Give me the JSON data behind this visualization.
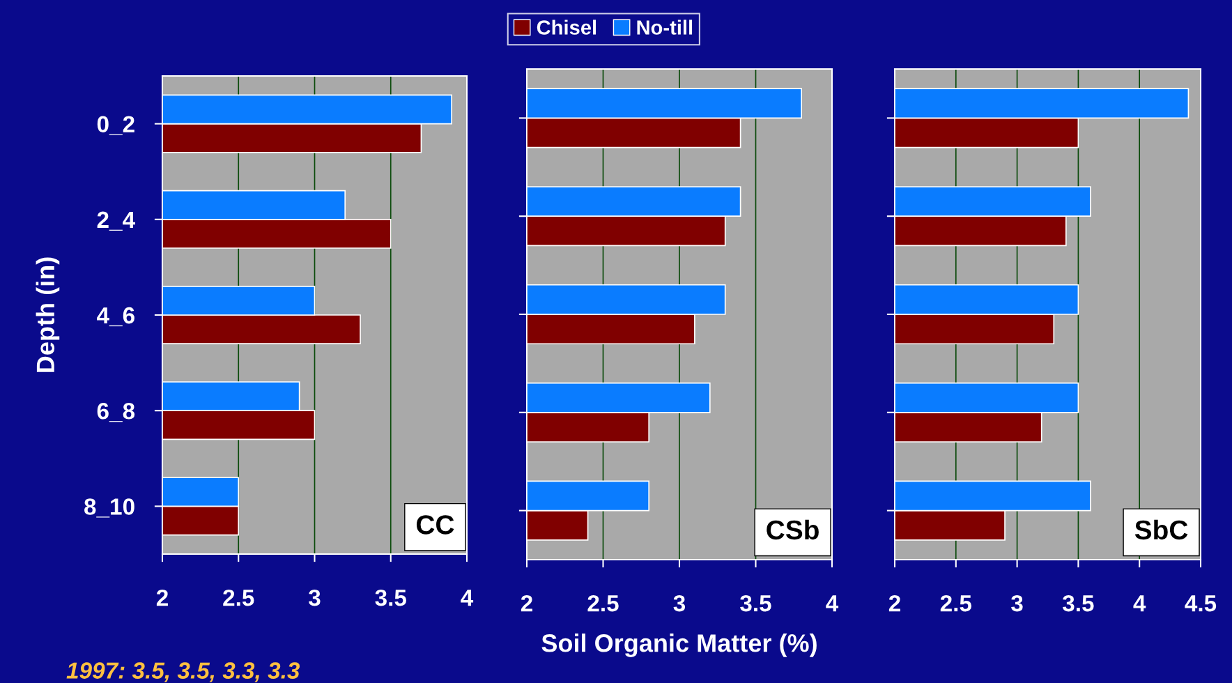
{
  "chart_data": [
    {
      "type": "bar",
      "orientation": "horizontal",
      "ylabel": "Depth (in)",
      "categories": [
        "0_2",
        "2_4",
        "4_6",
        "6_8",
        "8_10"
      ],
      "series": [
        {
          "name": "Chisel",
          "color": "#800000",
          "values": [
            3.7,
            3.5,
            3.3,
            3.0,
            2.5
          ]
        },
        {
          "name": "No-till",
          "color": "#0a7cff",
          "values": [
            3.9,
            3.2,
            3.0,
            2.9,
            2.5
          ]
        }
      ],
      "xlim": [
        2,
        4
      ],
      "xticks": [
        2,
        2.5,
        3,
        3.5,
        4
      ],
      "grid": "x",
      "legend": "top",
      "annotations": [
        "CC",
        "1997: 3.5, 3.5, 3.3, 3.3"
      ]
    },
    {
      "type": "bar",
      "orientation": "horizontal",
      "xlabel": "Soil Organic Matter (%)",
      "categories": [
        null,
        null,
        null,
        null,
        null
      ],
      "series": [
        {
          "color": "#800000",
          "values": [
            3.4,
            3.3,
            3.1,
            2.8,
            2.4
          ]
        },
        {
          "color": "#0a7cff",
          "values": [
            3.8,
            3.4,
            3.3,
            3.2,
            2.8
          ]
        }
      ],
      "xlim": [
        2,
        4
      ],
      "xticks": [
        2,
        2.5,
        3,
        3.5,
        4
      ],
      "grid": "x",
      "tick_labels": "x",
      "annotations": [
        "CSb"
      ]
    },
    {
      "type": "bar",
      "orientation": "horizontal",
      "categories": [
        null,
        null,
        null,
        null,
        null
      ],
      "series": [
        {
          "color": "#800000",
          "values": [
            3.5,
            3.4,
            3.3,
            3.2,
            2.9
          ]
        },
        {
          "color": "#0a7cff",
          "values": [
            4.4,
            3.6,
            3.5,
            3.5,
            3.6
          ]
        }
      ],
      "xlim": [
        2,
        4.5
      ],
      "xticks": [
        2,
        2.5,
        3,
        3.5,
        4,
        4.5
      ],
      "grid": "x",
      "tick_labels": "x",
      "annotations": [
        "SbC"
      ]
    }
  ]
}
